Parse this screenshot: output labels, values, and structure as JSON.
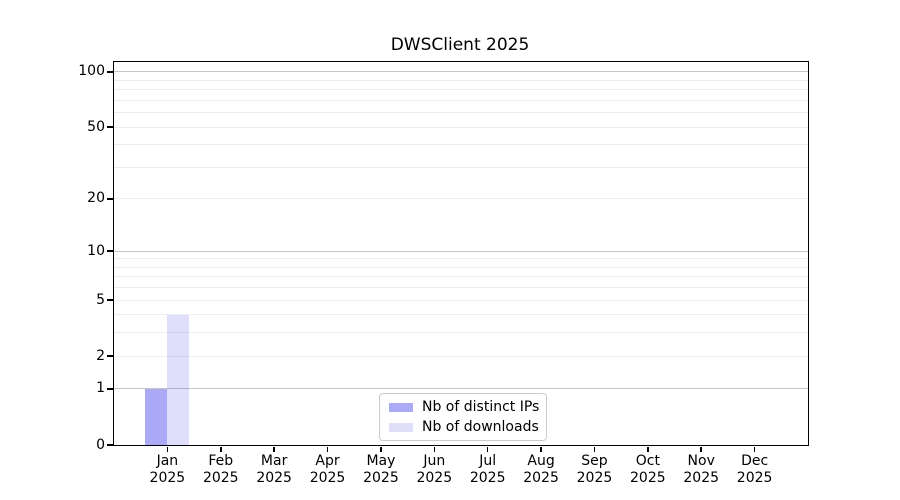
{
  "figure": {
    "title": "DWSClient 2025",
    "background_color": "#ffffff"
  },
  "chart_data": {
    "type": "bar",
    "title": "DWSClient 2025",
    "xlabel": "",
    "ylabel": "",
    "categories": [
      "Jan 2025",
      "Feb 2025",
      "Mar 2025",
      "Apr 2025",
      "May 2025",
      "Jun 2025",
      "Jul 2025",
      "Aug 2025",
      "Sep 2025",
      "Oct 2025",
      "Nov 2025",
      "Dec 2025"
    ],
    "series": [
      {
        "name": "Nb of distinct IPs",
        "color": "rgba(85,85,240,0.5)",
        "swatch_color": "#aaaaf7",
        "values": [
          1,
          0,
          0,
          0,
          0,
          0,
          0,
          0,
          0,
          0,
          0,
          0
        ]
      },
      {
        "name": "Nb of downloads",
        "color": "rgba(85,85,240,0.19)",
        "swatch_color": "#dfdffa",
        "values": [
          4,
          0,
          0,
          0,
          0,
          0,
          0,
          0,
          0,
          0,
          0,
          0
        ]
      }
    ],
    "yscale": "log1p",
    "ylim": [
      0,
      113
    ],
    "y_ticks": [
      0,
      1,
      2,
      5,
      10,
      20,
      50,
      100
    ],
    "grid": {
      "major_values": [
        1,
        10,
        100
      ],
      "minor_values": [
        2,
        3,
        4,
        5,
        6,
        7,
        8,
        9,
        20,
        30,
        40,
        50,
        60,
        70,
        80,
        90
      ],
      "major_color": "#c6c6c6",
      "minor_color": "#ededed"
    },
    "legend_position": "lower center",
    "legend_entries": [
      "Nb of distinct IPs",
      "Nb of downloads"
    ]
  }
}
